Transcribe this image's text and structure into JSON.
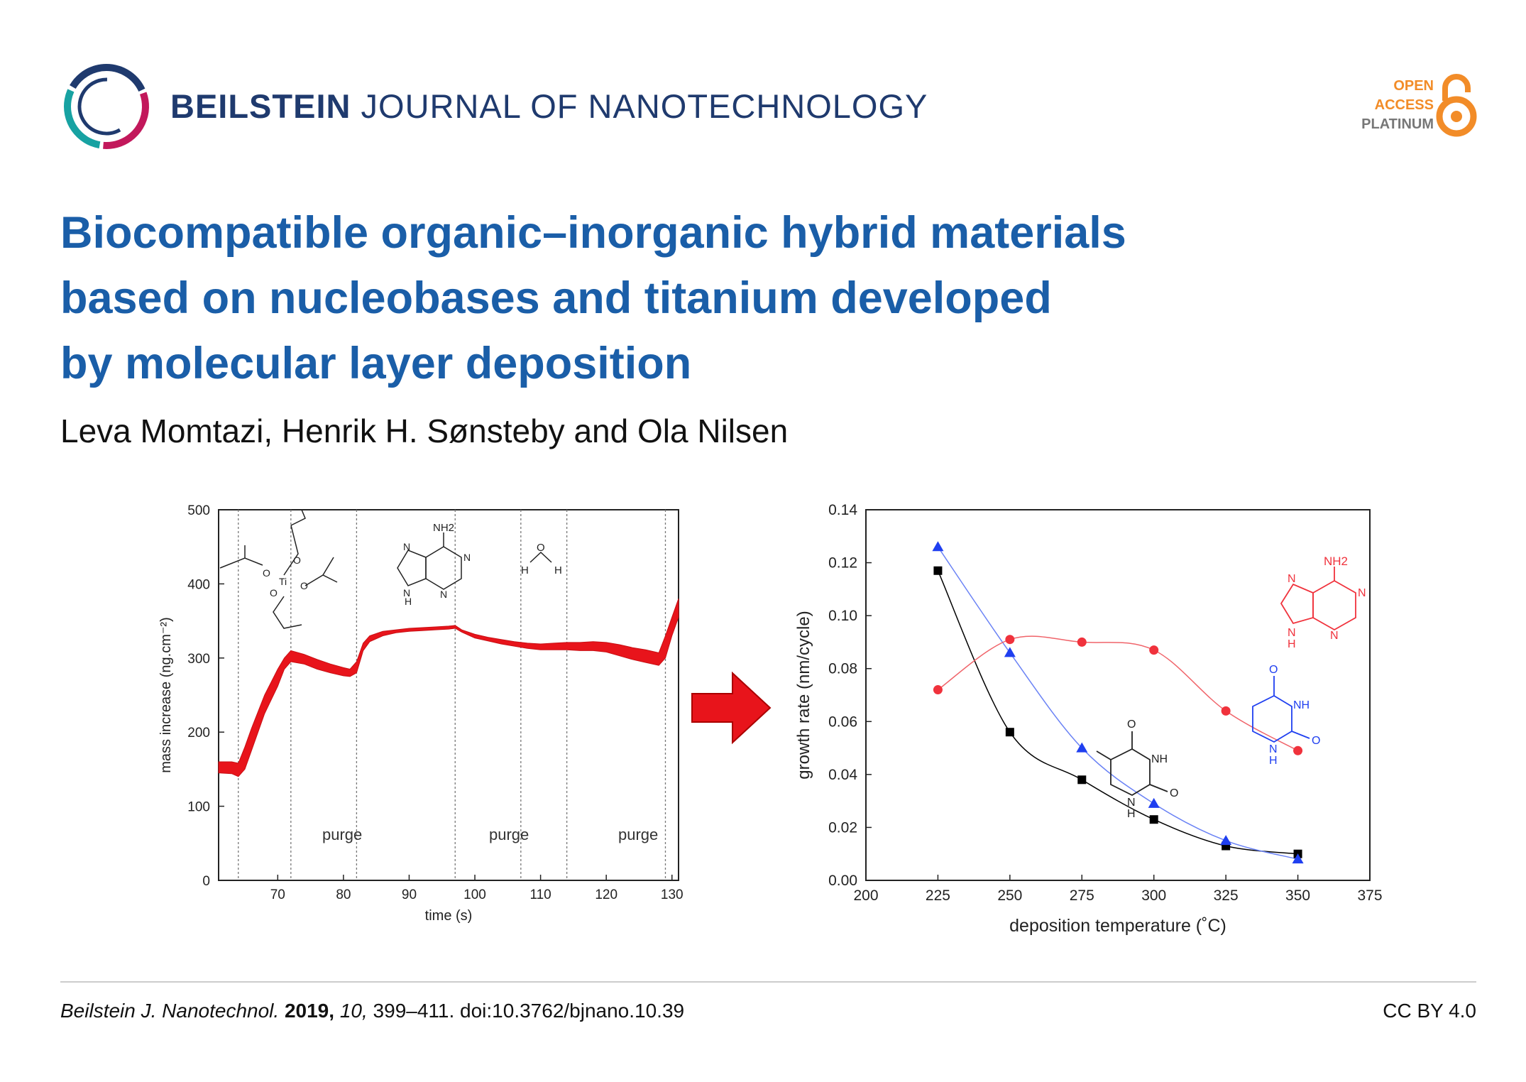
{
  "header": {
    "journal_bold": "BEILSTEIN",
    "journal_rest": "JOURNAL OF NANOTECHNOLOGY",
    "oa_line1": "OPEN",
    "oa_line2": "ACCESS",
    "oa_line3": "PLATINUM"
  },
  "article": {
    "title_lines": [
      "Biocompatible organic–inorganic hybrid materials",
      "based on nucleobases and titanium developed",
      "by molecular layer deposition"
    ],
    "authors": "Leva Momtazi, Henrik H. Sønsteby and Ola Nilsen"
  },
  "footer": {
    "journal_abbrev": "Beilstein J. Nanotechnol.",
    "year": "2019,",
    "volume": "10,",
    "pages_doi": " 399–411. doi:10.3762/bjnano.10.39",
    "license": "CC BY 4.0"
  },
  "colors": {
    "title": "#1a5ea8",
    "journal": "#1f3a6e",
    "open_access": "#f28c28",
    "mass_curve": "#e8141b",
    "thymine_series": "#000000",
    "uracil_series": "#1f3ff0",
    "adenine_series": "#f0323c"
  },
  "chart_data": [
    {
      "type": "area",
      "xlabel": "time (s)",
      "ylabel": "mass increase (ng.cm⁻²)",
      "xlim": [
        61,
        131
      ],
      "ylim": [
        0,
        500
      ],
      "xticks": [
        70,
        80,
        90,
        100,
        110,
        120,
        130
      ],
      "yticks": [
        0,
        100,
        200,
        300,
        400,
        500
      ],
      "pulse_boundaries": [
        64,
        72,
        82,
        97,
        107,
        114,
        129
      ],
      "annotations": [
        "purge",
        "purge",
        "purge"
      ],
      "molecule_labels": [
        "NH2",
        "N",
        "N",
        "N",
        "H",
        "N",
        "H",
        "O",
        "H",
        "Ti",
        "O",
        "O",
        "O",
        "O"
      ],
      "series": [
        {
          "x": [
            61,
            63,
            64,
            65,
            66,
            68,
            70,
            71,
            72,
            74,
            76,
            78,
            80,
            81,
            82,
            83,
            84,
            86,
            88,
            90,
            92,
            94,
            96,
            97,
            98,
            100,
            102,
            104,
            106,
            108,
            110,
            112,
            114,
            116,
            118,
            120,
            122,
            124,
            126,
            128,
            129,
            130,
            131
          ],
          "upper": [
            160,
            160,
            158,
            180,
            205,
            250,
            285,
            300,
            310,
            305,
            298,
            292,
            287,
            285,
            295,
            320,
            330,
            336,
            338,
            340,
            341,
            342,
            343,
            344,
            338,
            332,
            328,
            325,
            322,
            320,
            319,
            320,
            321,
            321,
            322,
            321,
            318,
            314,
            311,
            307,
            330,
            355,
            380
          ],
          "lower": [
            145,
            144,
            140,
            150,
            175,
            225,
            262,
            285,
            295,
            292,
            285,
            280,
            276,
            275,
            280,
            310,
            322,
            330,
            334,
            336,
            337,
            338,
            339,
            340,
            335,
            327,
            323,
            319,
            316,
            313,
            311,
            311,
            311,
            310,
            310,
            308,
            303,
            298,
            294,
            290,
            300,
            330,
            355
          ]
        }
      ]
    },
    {
      "type": "scatter",
      "xlabel": "deposition temperature (˚C)",
      "ylabel": "growth rate (nm/cycle)",
      "xlim": [
        200,
        375
      ],
      "ylim": [
        0.0,
        0.14
      ],
      "xticks": [
        200,
        225,
        250,
        275,
        300,
        325,
        350,
        375
      ],
      "yticks": [
        0.0,
        0.02,
        0.04,
        0.06,
        0.08,
        0.1,
        0.12,
        0.14
      ],
      "molecule_labels": [
        "NH2",
        "N",
        "N",
        "N",
        "H",
        "N",
        "O",
        "NH",
        "O",
        "N",
        "H",
        "O",
        "NH",
        "N",
        "H",
        "O"
      ],
      "x": [
        225,
        250,
        275,
        300,
        325,
        350
      ],
      "series": [
        {
          "marker": "square",
          "values": [
            0.117,
            0.056,
            0.038,
            0.023,
            0.013,
            0.01
          ],
          "color": "#000000"
        },
        {
          "marker": "triangle",
          "values": [
            0.126,
            0.086,
            0.05,
            0.029,
            0.015,
            0.008
          ],
          "color": "#1f3ff0"
        },
        {
          "marker": "circle",
          "values": [
            0.072,
            0.091,
            0.09,
            0.087,
            0.064,
            0.049
          ],
          "color": "#f0323c"
        }
      ]
    }
  ]
}
